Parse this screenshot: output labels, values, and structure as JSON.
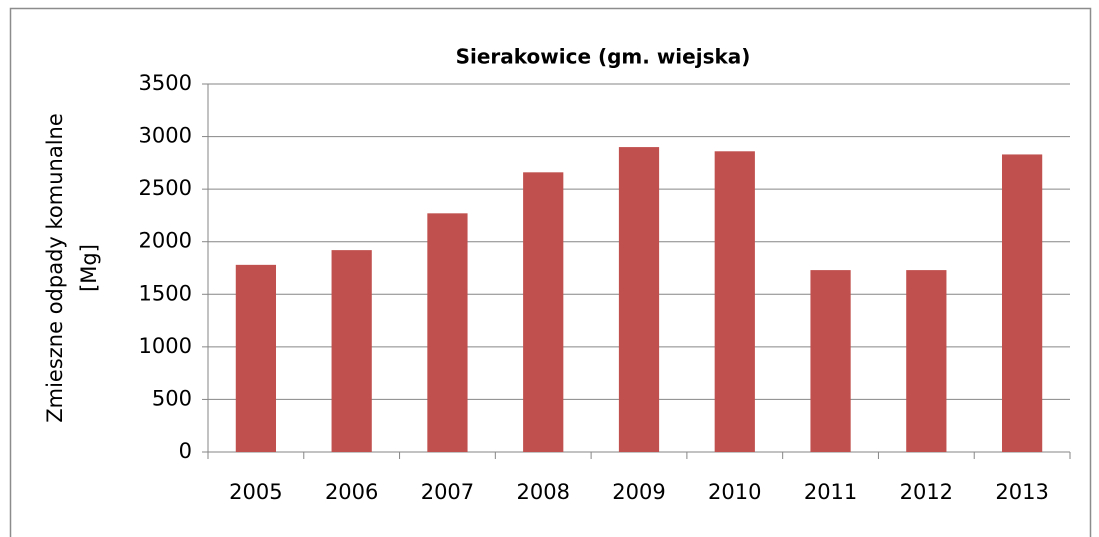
{
  "chart_data": {
    "type": "bar",
    "title": "Sierakowice (gm. wiejska)",
    "y_label": [
      "Zmieszne odpady komunalne",
      "[Mg]"
    ],
    "categories": [
      "2005",
      "2006",
      "2007",
      "2008",
      "2009",
      "2010",
      "2011",
      "2012",
      "2013"
    ],
    "values": [
      1780,
      1920,
      2270,
      2660,
      2900,
      2860,
      1730,
      1730,
      2830
    ],
    "color": "#c0504d",
    "ylim": [
      0,
      3500
    ],
    "yticks": [
      0,
      500,
      1000,
      1500,
      2000,
      2500,
      3000,
      3500
    ],
    "grid": true
  }
}
